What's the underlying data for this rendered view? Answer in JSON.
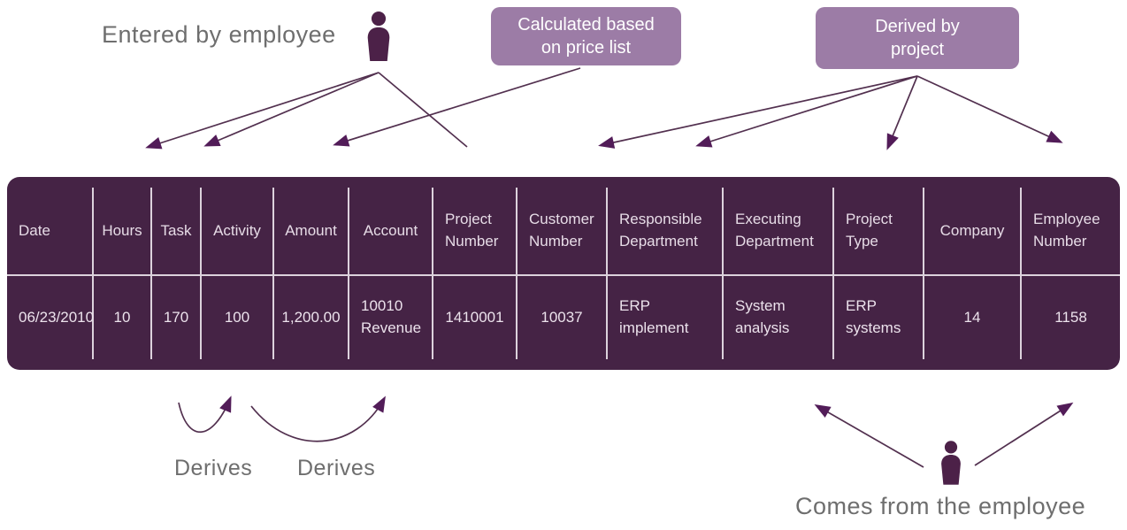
{
  "annotations": {
    "entered_by_employee": "Entered by employee",
    "calculated_box_lines": [
      "Calculated based",
      "on price list"
    ],
    "derived_box_lines": [
      "Derived by",
      "project"
    ],
    "derives_label_1": "Derives",
    "derives_label_2": "Derives",
    "comes_from_employee": "Comes from the employee"
  },
  "table": {
    "headers": [
      "Date",
      "Hours",
      "Task",
      "Activity",
      "Amount",
      "Account",
      "Project Number",
      "Customer Number",
      "Responsible Department",
      "Executing Department",
      "Project Type",
      "Company",
      "Employee Number"
    ],
    "row": [
      "06/23/2010",
      "10",
      "170",
      "100",
      "1,200.00",
      "10010 Revenue",
      "1410001",
      "10037",
      "ERP implement",
      "System analysis",
      "ERP systems",
      "14",
      "1158"
    ]
  },
  "colors": {
    "table_background": "#452345",
    "table_divider": "#dcd2dc",
    "table_text": "#ece2ec",
    "callout_background": "#9c7ca6",
    "callout_text": "#ffffff",
    "arrow_line": "#52304f",
    "arrow_head": "#521c58",
    "person_icon": "#4c2148",
    "annotation_text": "#6e6e6e"
  }
}
